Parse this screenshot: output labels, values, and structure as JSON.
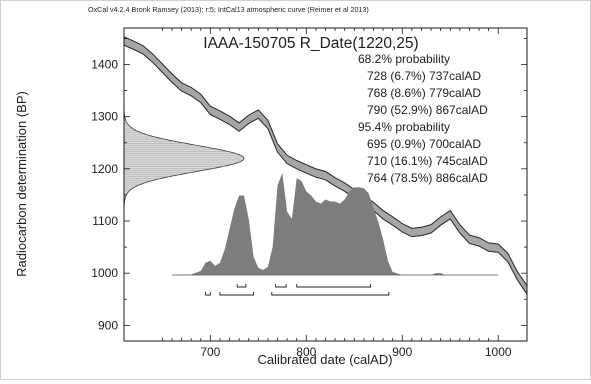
{
  "chart_data": {
    "type": "area",
    "header": "OxCal v4.2.4 Bronk Ramsey (2013); r:5; IntCal13 atmospheric curve (Reimer et al 2013)",
    "title": "IAAA-150705 R_Date(1220,25)",
    "xlabel": "Calibrated date (calAD)",
    "ylabel": "Radiocarbon determination (BP)",
    "xlim": [
      610,
      1030
    ],
    "ylim": [
      870,
      1470
    ],
    "xticks": [
      700,
      800,
      900,
      1000
    ],
    "yticks": [
      900,
      1000,
      1100,
      1200,
      1300,
      1400
    ],
    "probability_68": {
      "label": "68.2% probability",
      "ranges": [
        "728 (6.7%) 737calAD",
        "768 (8.6%) 779calAD",
        "790 (52.9%) 867calAD"
      ],
      "intervals": [
        [
          728,
          737
        ],
        [
          768,
          779
        ],
        [
          790,
          867
        ]
      ]
    },
    "probability_95": {
      "label": "95.4% probability",
      "ranges": [
        "695 (0.9%) 700calAD",
        "710 (16.1%) 745calAD",
        "764 (78.5%) 886calAD"
      ],
      "intervals": [
        [
          695,
          700
        ],
        [
          710,
          745
        ],
        [
          764,
          886
        ]
      ]
    },
    "measurement": {
      "mean_bp": 1220,
      "sigma": 25
    },
    "calibration_curve": {
      "name": "IntCal13",
      "x": [
        610,
        620,
        630,
        640,
        650,
        660,
        670,
        680,
        690,
        700,
        710,
        720,
        730,
        740,
        750,
        760,
        770,
        780,
        790,
        800,
        810,
        820,
        830,
        840,
        850,
        860,
        870,
        880,
        890,
        900,
        910,
        920,
        930,
        940,
        950,
        960,
        970,
        980,
        990,
        1000,
        1010,
        1020,
        1030
      ],
      "y": [
        1445,
        1437,
        1428,
        1412,
        1393,
        1374,
        1357,
        1348,
        1335,
        1312,
        1303,
        1293,
        1280,
        1295,
        1305,
        1285,
        1240,
        1218,
        1208,
        1200,
        1192,
        1187,
        1175,
        1165,
        1152,
        1140,
        1128,
        1112,
        1100,
        1087,
        1078,
        1080,
        1085,
        1100,
        1112,
        1085,
        1065,
        1060,
        1050,
        1048,
        1030,
        995,
        968
      ],
      "sigma": [
        8,
        8,
        8,
        8,
        8,
        8,
        8,
        8,
        8,
        8,
        8,
        8,
        8,
        8,
        8,
        8,
        8,
        8,
        8,
        8,
        8,
        8,
        8,
        8,
        8,
        8,
        8,
        8,
        8,
        8,
        8,
        8,
        8,
        8,
        8,
        8,
        8,
        8,
        8,
        8,
        8,
        8,
        8
      ]
    },
    "calibrated_distribution": {
      "x": [
        660,
        680,
        690,
        695,
        700,
        705,
        710,
        715,
        720,
        725,
        730,
        735,
        740,
        745,
        750,
        755,
        760,
        765,
        770,
        775,
        780,
        785,
        790,
        795,
        800,
        805,
        810,
        815,
        820,
        825,
        830,
        835,
        840,
        845,
        850,
        855,
        860,
        865,
        870,
        875,
        880,
        885,
        890,
        900,
        930,
        935,
        940,
        945,
        960,
        1000
      ],
      "density": [
        0,
        0.005,
        0.04,
        0.12,
        0.14,
        0.09,
        0.12,
        0.25,
        0.45,
        0.65,
        0.78,
        0.78,
        0.55,
        0.18,
        0.07,
        0.05,
        0.08,
        0.28,
        0.88,
        1.0,
        0.62,
        0.55,
        0.95,
        0.92,
        0.82,
        0.78,
        0.72,
        0.7,
        0.74,
        0.72,
        0.72,
        0.7,
        0.74,
        0.82,
        0.86,
        0.86,
        0.85,
        0.8,
        0.66,
        0.52,
        0.35,
        0.14,
        0.03,
        0,
        0,
        0.018,
        0.018,
        0,
        0,
        0
      ]
    },
    "colors": {
      "curve_fill": "#a6a6a6",
      "curve_edge": "#262626",
      "distribution_fill": "#7d7d7d",
      "measurement_fill": "#d9d9d9",
      "background": "#ffffff"
    }
  }
}
